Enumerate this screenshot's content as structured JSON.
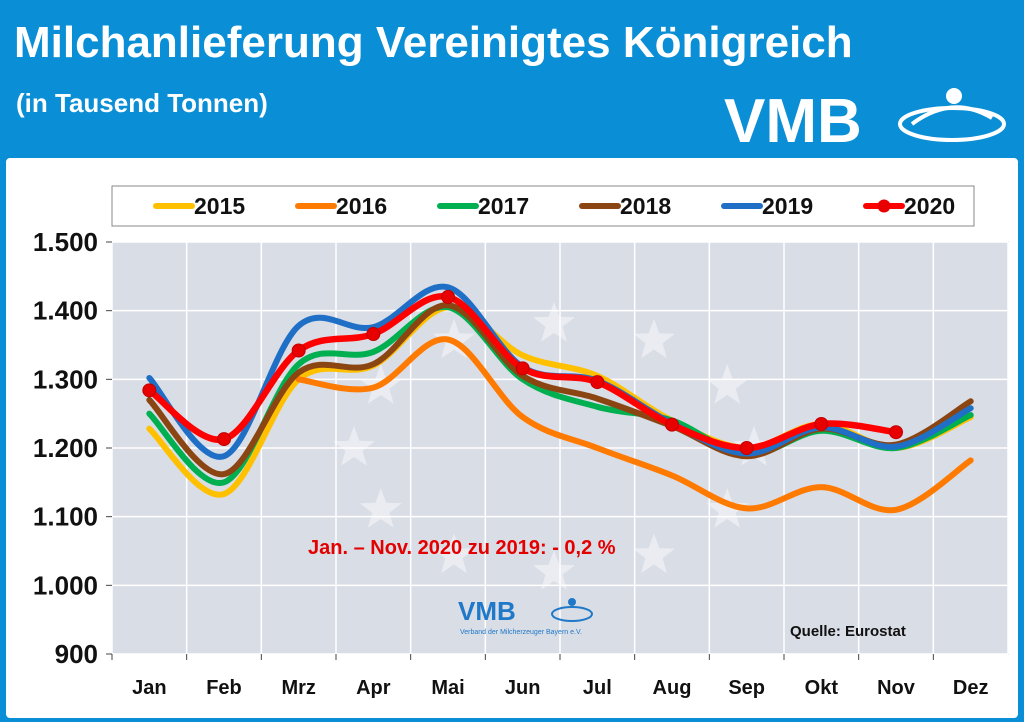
{
  "header": {
    "title": "Milchanlieferung Vereinigtes Königreich",
    "subtitle": "(in Tausend Tonnen)",
    "logo_text": "VMB"
  },
  "colors": {
    "background": "#0a8fd6",
    "plot_area": "#d9dde6",
    "annotation": "#e30000"
  },
  "chart_data": {
    "type": "line",
    "categories": [
      "Jan",
      "Feb",
      "Mrz",
      "Apr",
      "Mai",
      "Jun",
      "Jul",
      "Aug",
      "Sep",
      "Okt",
      "Nov",
      "Dez"
    ],
    "ylim": [
      900,
      1500
    ],
    "yticks": [
      900,
      1000,
      1100,
      1200,
      1300,
      1400,
      1500
    ],
    "ytick_labels": [
      "900",
      "1.000",
      "1.100",
      "1.200",
      "1.300",
      "1.400",
      "1.500"
    ],
    "grid": true,
    "legend_position": "top",
    "series": [
      {
        "name": "2015",
        "color": "#ffc000",
        "values": [
          1228,
          1133,
          1300,
          1320,
          1405,
          1335,
          1305,
          1240,
          1200,
          1235,
          1200,
          1245
        ]
      },
      {
        "name": "2016",
        "color": "#ff7a00",
        "values": [
          null,
          null,
          1300,
          1288,
          1358,
          1245,
          1200,
          1160,
          1112,
          1143,
          1110,
          1182
        ]
      },
      {
        "name": "2017",
        "color": "#00b050",
        "values": [
          1250,
          1150,
          1322,
          1340,
          1405,
          1300,
          1260,
          1240,
          1190,
          1225,
          1200,
          1248
        ]
      },
      {
        "name": "2018",
        "color": "#8b4513",
        "values": [
          1270,
          1162,
          1310,
          1322,
          1408,
          1305,
          1272,
          1232,
          1188,
          1228,
          1205,
          1268
        ]
      },
      {
        "name": "2019",
        "color": "#1f6fc6",
        "values": [
          1302,
          1188,
          1378,
          1376,
          1434,
          1318,
          1298,
          1236,
          1192,
          1230,
          1202,
          1258
        ]
      },
      {
        "name": "2020",
        "color": "#ff0000",
        "values": [
          1284,
          1213,
          1342,
          1366,
          1420,
          1316,
          1296,
          1234,
          1200,
          1235,
          1223,
          null
        ]
      }
    ],
    "annotation": "Jan. – Nov. 2020 zu 2019: - 0,2 %",
    "source": "Quelle: Eurostat",
    "watermark_logo": "VMB",
    "watermark_caption": "Verband der Milcherzeuger Bayern e.V."
  }
}
